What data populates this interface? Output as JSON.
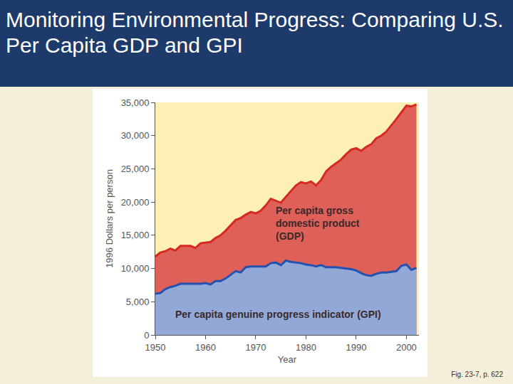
{
  "chart_data": {
    "type": "area",
    "title": "Monitoring Environmental Progress: Comparing U.S. Per Capita GDP and GPI",
    "caption": "Fig. 23-7, p. 622",
    "x_label": "Year",
    "y_label": "1996 Dollars per person",
    "x": [
      1950,
      1951,
      1952,
      1953,
      1954,
      1955,
      1956,
      1957,
      1958,
      1959,
      1960,
      1961,
      1962,
      1963,
      1964,
      1965,
      1966,
      1967,
      1968,
      1969,
      1970,
      1971,
      1972,
      1973,
      1974,
      1975,
      1976,
      1977,
      1978,
      1979,
      1980,
      1981,
      1982,
      1983,
      1984,
      1985,
      1986,
      1987,
      1988,
      1989,
      1990,
      1991,
      1992,
      1993,
      1994,
      1995,
      1996,
      1997,
      1998,
      1999,
      2000,
      2001,
      2002
    ],
    "series": [
      {
        "name": "Per capita gross domestic product (GDP)",
        "color": "#d42a22",
        "values": [
          11800,
          12400,
          12600,
          13000,
          12700,
          13400,
          13400,
          13400,
          13100,
          13800,
          13900,
          14000,
          14600,
          15000,
          15700,
          16500,
          17300,
          17600,
          18100,
          18500,
          18300,
          18700,
          19500,
          20500,
          20200,
          19900,
          20800,
          21600,
          22500,
          23000,
          22800,
          23100,
          22500,
          23300,
          24600,
          25300,
          25900,
          26400,
          27200,
          27900,
          28100,
          27700,
          28300,
          28700,
          29600,
          30000,
          30600,
          31500,
          32500,
          33500,
          34500,
          34400,
          34700
        ]
      },
      {
        "name": "Per capita genuine progress indicator (GPI)",
        "color": "#2452b0",
        "values": [
          6200,
          6300,
          6900,
          7200,
          7400,
          7700,
          7700,
          7700,
          7700,
          7700,
          7800,
          7600,
          8100,
          8100,
          8500,
          9100,
          9600,
          9400,
          10200,
          10300,
          10300,
          10300,
          10300,
          10800,
          10900,
          10500,
          11200,
          11000,
          10900,
          10800,
          10600,
          10500,
          10300,
          10500,
          10200,
          10200,
          10200,
          10100,
          10000,
          9900,
          9700,
          9300,
          9000,
          8900,
          9200,
          9400,
          9400,
          9500,
          9600,
          10400,
          10600,
          9800,
          10100
        ]
      }
    ],
    "xlim": [
      1950,
      2002.5
    ],
    "xticks": [
      1950,
      1960,
      1970,
      1980,
      1990,
      2000
    ],
    "ylim": [
      0,
      35000
    ],
    "yticks": [
      0,
      {
        "value": 5000,
        "label": "5,000"
      },
      {
        "value": 10000,
        "label": "10,000"
      },
      {
        "value": 15000,
        "label": "15,000"
      },
      {
        "value": 20000,
        "label": "20,000"
      },
      {
        "value": 25000,
        "label": "25,000"
      },
      {
        "value": 30000,
        "label": "30,000"
      },
      {
        "value": 35000,
        "label": "35,000"
      }
    ],
    "grid": false,
    "stacked": false
  }
}
